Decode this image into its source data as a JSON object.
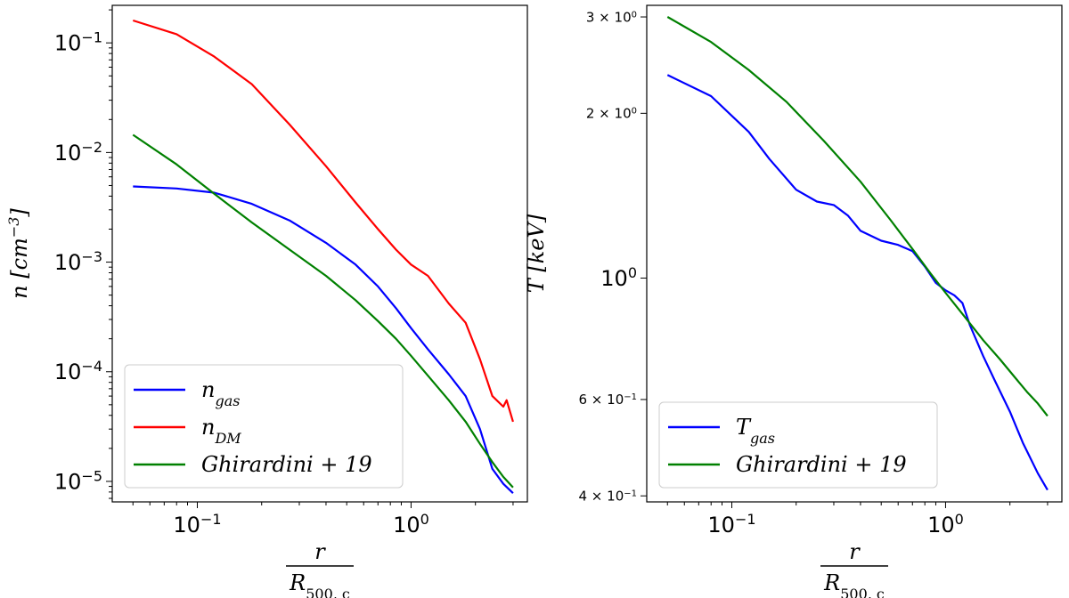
{
  "chart_data": [
    {
      "type": "line",
      "xscale": "log",
      "yscale": "log",
      "xlim": [
        0.04,
        3.5
      ],
      "ylim": [
        6.5e-06,
        0.22
      ],
      "xlabel": {
        "numerator": "r",
        "denominator": "R",
        "denominator_sub": "500, c"
      },
      "ylabel": {
        "main": "n [cm",
        "sup": "−3",
        "end": "]"
      },
      "xticks": [
        {
          "value": 0.1,
          "base": "10",
          "exp": "−1"
        },
        {
          "value": 1,
          "base": "10",
          "exp": "0"
        }
      ],
      "yticks": [
        {
          "value": 0.1,
          "base": "10",
          "exp": "−1"
        },
        {
          "value": 0.01,
          "base": "10",
          "exp": "−2"
        },
        {
          "value": 0.001,
          "base": "10",
          "exp": "−3"
        },
        {
          "value": 0.0001,
          "base": "10",
          "exp": "−4"
        },
        {
          "value": 1e-05,
          "base": "10",
          "exp": "−5"
        }
      ],
      "legend_position": "lower-left",
      "series": [
        {
          "name": "n",
          "name_sub": "gas",
          "color": "#0000ff",
          "x": [
            0.05,
            0.08,
            0.12,
            0.18,
            0.27,
            0.4,
            0.55,
            0.7,
            0.85,
            1.0,
            1.2,
            1.5,
            1.8,
            2.1,
            2.4,
            2.7,
            3.0
          ],
          "y": [
            0.0049,
            0.0047,
            0.0043,
            0.0034,
            0.0024,
            0.0015,
            0.00095,
            0.0006,
            0.00038,
            0.00025,
            0.00016,
            9.5e-05,
            6e-05,
            3e-05,
            1.3e-05,
            9.5e-06,
            7.8e-06
          ]
        },
        {
          "name": "n",
          "name_sub": "DM",
          "color": "#ff0000",
          "x": [
            0.05,
            0.08,
            0.12,
            0.18,
            0.27,
            0.4,
            0.55,
            0.7,
            0.85,
            1.0,
            1.2,
            1.5,
            1.8,
            2.1,
            2.4,
            2.7,
            2.8,
            3.0
          ],
          "y": [
            0.16,
            0.12,
            0.075,
            0.042,
            0.018,
            0.0075,
            0.0035,
            0.002,
            0.0013,
            0.00095,
            0.00075,
            0.00042,
            0.00028,
            0.00013,
            6e-05,
            4.8e-05,
            5.5e-05,
            3.5e-05
          ]
        },
        {
          "name": "Ghirardini + 19",
          "name_sub": "",
          "color": "#008000",
          "x": [
            0.05,
            0.08,
            0.12,
            0.18,
            0.27,
            0.4,
            0.55,
            0.7,
            0.85,
            1.0,
            1.2,
            1.5,
            1.8,
            2.1,
            2.4,
            2.7,
            3.0
          ],
          "y": [
            0.0145,
            0.0078,
            0.0042,
            0.0023,
            0.0013,
            0.00075,
            0.00045,
            0.00029,
            0.0002,
            0.00014,
            9.2e-05,
            5.5e-05,
            3.5e-05,
            2.2e-05,
            1.5e-05,
            1.1e-05,
            8.8e-06
          ]
        }
      ]
    },
    {
      "type": "line",
      "xscale": "log",
      "yscale": "log",
      "xlim": [
        0.04,
        3.5
      ],
      "ylim": [
        0.39,
        3.15
      ],
      "xlabel": {
        "numerator": "r",
        "denominator": "R",
        "denominator_sub": "500, c"
      },
      "ylabel": {
        "main": "T [keV]",
        "sup": "",
        "end": ""
      },
      "xticks": [
        {
          "value": 0.1,
          "base": "10",
          "exp": "−1"
        },
        {
          "value": 1,
          "base": "10",
          "exp": "0"
        }
      ],
      "yticks": [
        {
          "value": 3,
          "mant": "3 × 10",
          "exp": "0",
          "size": "small"
        },
        {
          "value": 2,
          "mant": "2 × 10",
          "exp": "0",
          "size": "small"
        },
        {
          "value": 1,
          "mant": "10",
          "exp": "0",
          "size": "large"
        },
        {
          "value": 0.6,
          "mant": "6 × 10",
          "exp": "−1",
          "size": "small"
        },
        {
          "value": 0.4,
          "mant": "4 × 10",
          "exp": "−1",
          "size": "small"
        }
      ],
      "legend_position": "lower-left",
      "series": [
        {
          "name": "T",
          "name_sub": "gas",
          "color": "#0000ff",
          "x": [
            0.05,
            0.08,
            0.12,
            0.15,
            0.2,
            0.25,
            0.3,
            0.35,
            0.4,
            0.5,
            0.6,
            0.7,
            0.8,
            0.9,
            1.0,
            1.1,
            1.2,
            1.3,
            1.5,
            1.7,
            2.0,
            2.3,
            2.7,
            3.0
          ],
          "y": [
            2.35,
            2.15,
            1.85,
            1.65,
            1.45,
            1.38,
            1.36,
            1.3,
            1.22,
            1.17,
            1.15,
            1.12,
            1.05,
            0.98,
            0.95,
            0.93,
            0.9,
            0.82,
            0.72,
            0.65,
            0.57,
            0.5,
            0.44,
            0.41
          ]
        },
        {
          "name": "Ghirardini + 19",
          "name_sub": "",
          "color": "#008000",
          "x": [
            0.05,
            0.08,
            0.12,
            0.18,
            0.27,
            0.4,
            0.55,
            0.7,
            0.85,
            1.0,
            1.2,
            1.5,
            1.8,
            2.1,
            2.4,
            2.7,
            3.0
          ],
          "y": [
            3.0,
            2.7,
            2.4,
            2.1,
            1.78,
            1.5,
            1.28,
            1.13,
            1.02,
            0.94,
            0.86,
            0.77,
            0.71,
            0.66,
            0.62,
            0.59,
            0.56
          ]
        }
      ]
    }
  ]
}
